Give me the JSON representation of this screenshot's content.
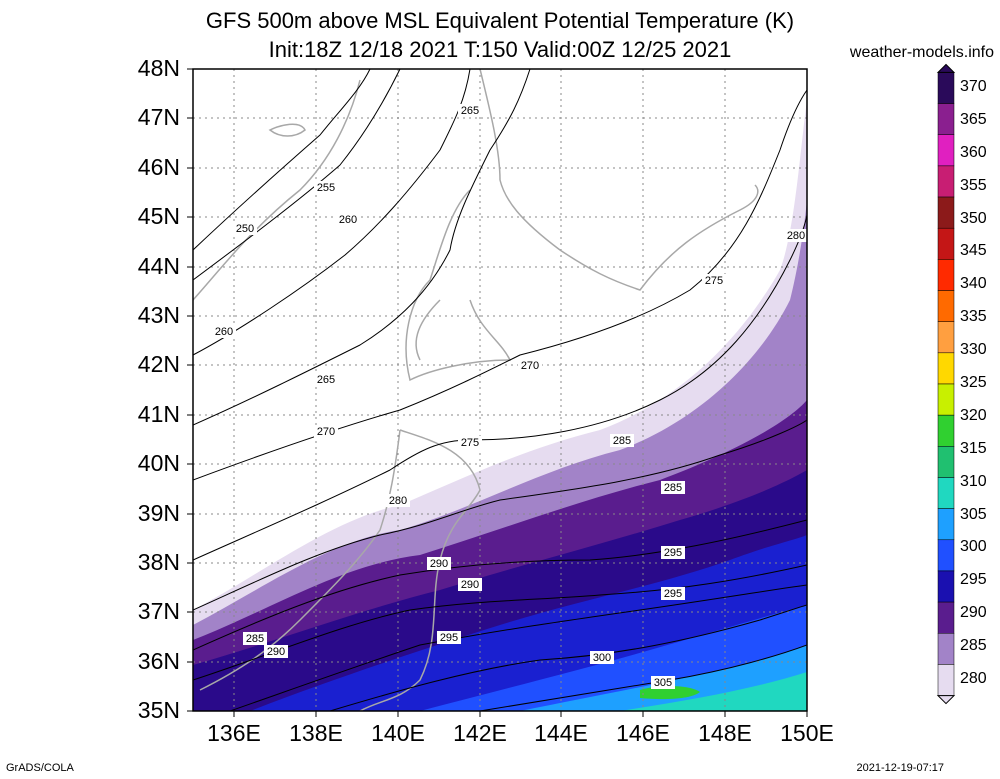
{
  "title_line1": "GFS 500m above MSL Equivalent Potential Temperature (K)",
  "title_line2": "Init:18Z 12/18 2021 T:150 Valid:00Z 12/25 2021",
  "credit": "weather-models.info",
  "footer_left": "GrADS/COLA",
  "footer_right": "2021-12-19-07:17",
  "lat_labels": [
    "48N",
    "47N",
    "46N",
    "45N",
    "44N",
    "43N",
    "42N",
    "41N",
    "40N",
    "39N",
    "38N",
    "37N",
    "36N",
    "35N"
  ],
  "lon_labels": [
    "136E",
    "138E",
    "140E",
    "142E",
    "144E",
    "146E",
    "148E",
    "150E"
  ],
  "colorbar": {
    "labels": [
      "370",
      "365",
      "360",
      "355",
      "350",
      "345",
      "340",
      "335",
      "330",
      "325",
      "320",
      "315",
      "310",
      "305",
      "300",
      "295",
      "290",
      "285",
      "280"
    ],
    "colors": [
      "#2a0a5a",
      "#8a1f8f",
      "#e020c0",
      "#c81e73",
      "#8c1a1a",
      "#c41616",
      "#ff2a00",
      "#ff6a00",
      "#ff9f40",
      "#ffd800",
      "#c8f000",
      "#30d030",
      "#20c070",
      "#20d8c0",
      "#1ea0ff",
      "#2050ff",
      "#1a10b0",
      "#5a1d8e",
      "#a283c8",
      "#e6dcf0"
    ]
  },
  "contour_labels": [
    "265",
    "255",
    "250",
    "260",
    "260",
    "265",
    "270",
    "275",
    "270",
    "280",
    "275",
    "280",
    "285",
    "285",
    "290",
    "290",
    "295",
    "285",
    "290",
    "295",
    "300",
    "305",
    "295"
  ]
}
